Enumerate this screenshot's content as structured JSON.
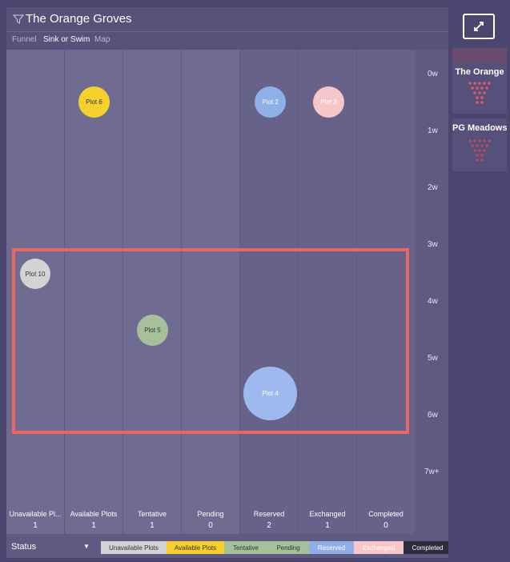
{
  "header": {
    "title": "The Orange Groves"
  },
  "tabs": [
    {
      "label": "Funnel"
    },
    {
      "label": "Sink or Swim"
    },
    {
      "label": "Map"
    }
  ],
  "columns": [
    {
      "label": "Unavailable Pl...",
      "count": "1"
    },
    {
      "label": "Available Plots",
      "count": "1"
    },
    {
      "label": "Tentative",
      "count": "1"
    },
    {
      "label": "Pending",
      "count": "0"
    },
    {
      "label": "Reserved",
      "count": "2"
    },
    {
      "label": "Exchanged",
      "count": "1"
    },
    {
      "label": "Completed",
      "count": "0"
    }
  ],
  "y_axis": [
    "0w",
    "1w",
    "2w",
    "3w",
    "4w",
    "5w",
    "6w",
    "7w+"
  ],
  "plots": [
    {
      "label": "Plot 6",
      "status_column": 1,
      "weeks": 0.5,
      "color": "#f6d12e"
    },
    {
      "label": "Plot 2",
      "status_column": 4,
      "weeks": 0.5,
      "color": "#8fb0e6"
    },
    {
      "label": "Plot 3",
      "status_column": 5,
      "weeks": 0.5,
      "color": "#f7c6c9"
    },
    {
      "label": "Plot 10",
      "status_column": 0,
      "weeks": 3.5,
      "color": "#d3d3d3"
    },
    {
      "label": "Plot 5",
      "status_column": 2,
      "weeks": 4.5,
      "color": "#a6c09a"
    },
    {
      "label": "Plot 4",
      "status_column": 4,
      "weeks": 5.5,
      "color": "#9db9ee"
    }
  ],
  "status_bar": {
    "label": "Status"
  },
  "legend": [
    {
      "label": "Unavailable Plots",
      "color": "#d3d3d3",
      "text_color": "#333333"
    },
    {
      "label": "Available Plots",
      "color": "#f6d12e",
      "text_color": "#333333"
    },
    {
      "label": "Tentative",
      "color": "#a6c09a",
      "text_color": "#333333"
    },
    {
      "label": "Pending",
      "color": "#a6c09a",
      "text_color": "#333333"
    },
    {
      "label": "Reserved",
      "color": "#8fb0e6",
      "text_color": "#ffffff"
    },
    {
      "label": "Exchanged",
      "color": "#f7c6c9",
      "text_color": "#ffffff"
    },
    {
      "label": "Completed",
      "color": "#2f2c40",
      "text_color": "#ffffff"
    }
  ],
  "side_cards": [
    {
      "title": "The Orange"
    },
    {
      "title": "PG Meadows"
    }
  ],
  "colors": {
    "highlight": "#e8695f",
    "funnel_dot": "#e05a66"
  }
}
